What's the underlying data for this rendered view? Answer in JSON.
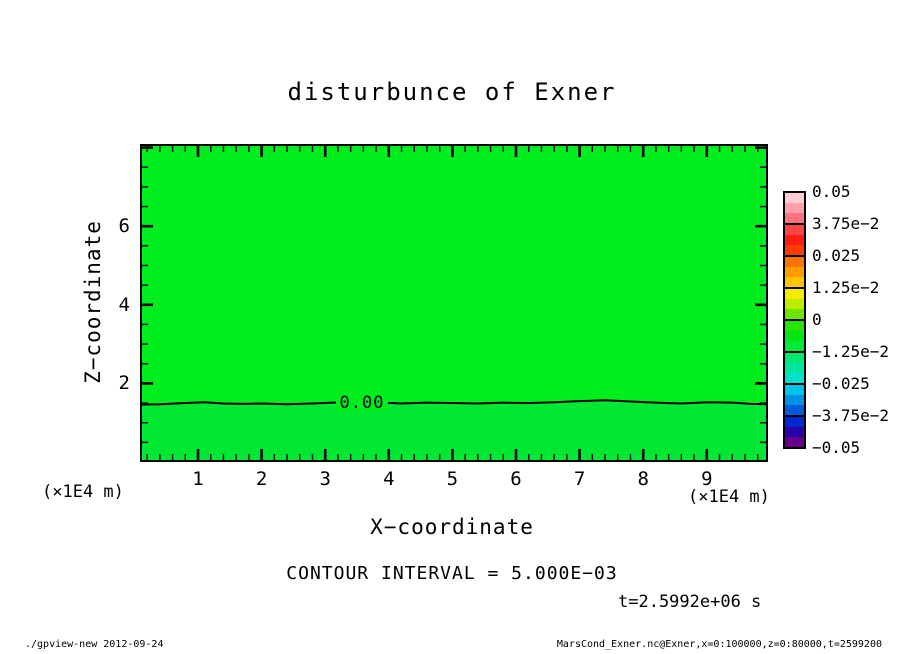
{
  "title": "disturbunce of Exner",
  "axes": {
    "x": {
      "label": "X−coordinate",
      "unit": "(×1E4 m)",
      "tick_values": [
        1,
        2,
        3,
        4,
        5,
        6,
        7,
        8,
        9
      ],
      "minor_step": 0.2,
      "range": [
        0,
        10
      ]
    },
    "z": {
      "label": "Z−coordinate",
      "unit": "(×1E4 m)",
      "tick_values": [
        2,
        4,
        6
      ],
      "minor_step": 0.5,
      "range": [
        0,
        8.09
      ]
    }
  },
  "annotations": {
    "contour_interval": "CONTOUR INTERVAL = 5.000E−03",
    "time": "t=2.5992e+06 s",
    "contour_label": "0.00"
  },
  "footer": {
    "left": "./gpview-new  2012-09-24",
    "right": "MarsCond_Exner.nc@Exner,x=0:100000,z=0:80000,t=2599200"
  },
  "colors": {
    "field_upper": "#00ee1e",
    "field_lower": "#00e832",
    "frame": "#000000",
    "background": "#ffffff"
  },
  "colorbar": {
    "labels": [
      "0.05",
      "3.75e−2",
      "0.025",
      "1.25e−2",
      "0",
      "−1.25e−2",
      "−0.025",
      "−3.75e−2",
      "−0.05"
    ],
    "cells": [
      {
        "range": "3.75e-2..0.05",
        "colors": [
          "#ffccd4",
          "#ffa0aa",
          "#ff7080"
        ]
      },
      {
        "range": "0.025..3.75e-2",
        "colors": [
          "#ff4448",
          "#ff1c14",
          "#ff3c00"
        ]
      },
      {
        "range": "1.25e-2..0.025",
        "colors": [
          "#ff7400",
          "#ff9c00",
          "#ffc400"
        ]
      },
      {
        "range": "0..1.25e-2",
        "colors": [
          "#f4ec00",
          "#bcec00",
          "#6ce400"
        ]
      },
      {
        "range": "-1.25e-2..0",
        "colors": [
          "#28e400",
          "#00e614",
          "#00ea3c"
        ]
      },
      {
        "range": "-0.025..-1.25e-2",
        "colors": [
          "#00e870",
          "#00e6a0",
          "#00e2cc"
        ]
      },
      {
        "range": "-3.75e-2..-0.025",
        "colors": [
          "#00c4ec",
          "#0092e4",
          "#005cdc"
        ]
      },
      {
        "range": "-0.05..-3.75e-2",
        "colors": [
          "#0028cc",
          "#2a00a8",
          "#66008c"
        ]
      }
    ]
  },
  "chart_data": {
    "type": "heatmap",
    "title": "disturbunce of Exner",
    "xlabel": "X-coordinate (×1E4 m)",
    "ylabel": "Z-coordinate (×1E4 m)",
    "xlim": [
      0,
      10
    ],
    "ylim": [
      0,
      8.09
    ],
    "x_ticks": [
      1,
      2,
      3,
      4,
      5,
      6,
      7,
      8,
      9
    ],
    "z_ticks": [
      2,
      4,
      6
    ],
    "colorbar_range": [
      -0.05,
      0.05
    ],
    "colorbar_tick_labels": [
      "0.05",
      "3.75e-2",
      "0.025",
      "1.25e-2",
      "0",
      "-1.25e-2",
      "-0.025",
      "-3.75e-2",
      "-0.05"
    ],
    "contour_interval": 0.005,
    "contour_interval_label": "CONTOUR INTERVAL = 5.000E-03",
    "time_label": "t=2.5992e+06 s",
    "field_summary": "Exner disturbance is near zero over the whole domain; values are in the band just above 0 over most of the plot and just below 0 beneath the single 0.00 contour near z = 1.5 ×1E4 m",
    "zero_contour": {
      "label": "0.00",
      "level": 0.0,
      "x": [
        0,
        0.4,
        0.8,
        1.1,
        1.4,
        1.7,
        2.0,
        2.4,
        2.8,
        3.1,
        3.5,
        3.9,
        4.2,
        4.6,
        5.0,
        5.4,
        5.8,
        6.2,
        6.6,
        7.0,
        7.4,
        7.8,
        8.2,
        8.6,
        9.0,
        9.4,
        9.7,
        10
      ],
      "z": [
        1.46,
        1.47,
        1.5,
        1.52,
        1.49,
        1.48,
        1.49,
        1.47,
        1.49,
        1.51,
        1.52,
        1.51,
        1.49,
        1.51,
        1.5,
        1.49,
        1.51,
        1.5,
        1.52,
        1.55,
        1.57,
        1.54,
        1.51,
        1.49,
        1.52,
        1.51,
        1.48,
        1.47
      ]
    }
  }
}
